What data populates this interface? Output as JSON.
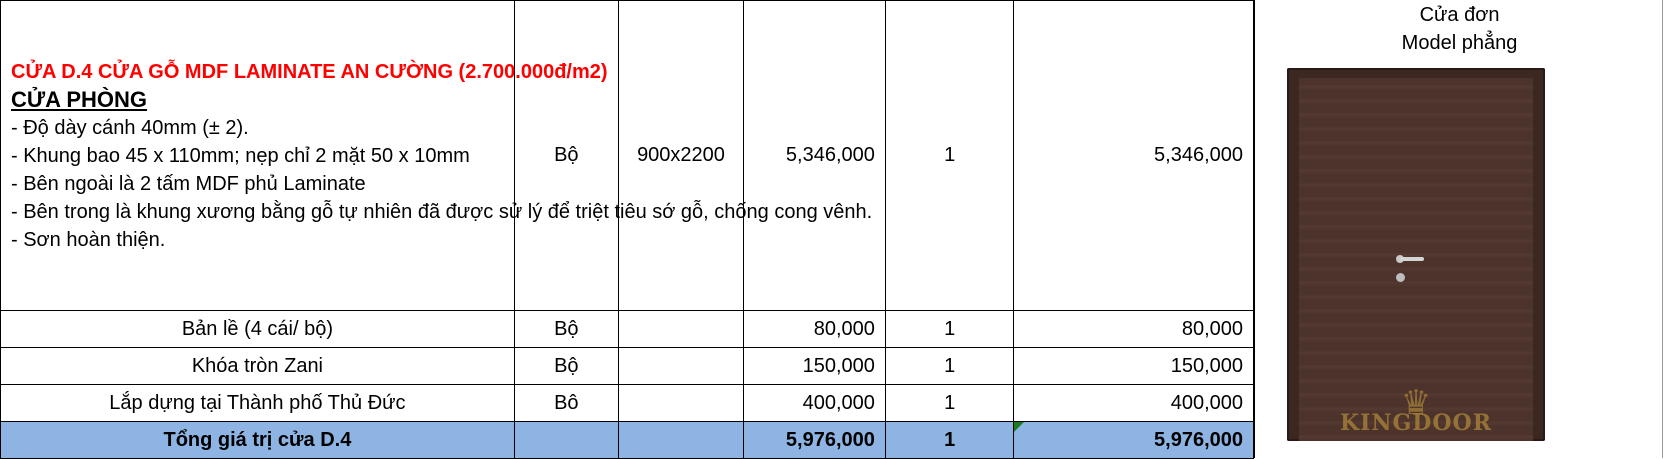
{
  "main_item": {
    "title": "CỬA D.4 CỬA GỖ MDF LAMINATE AN CƯỜNG (2.700.000đ/m2)",
    "subtitle": "CỬA PHÒNG",
    "lines": [
      "- Độ dày cánh 40mm (± 2).",
      "- Khung bao 45 x 110mm; nẹp chỉ 2 mặt 50 x 10mm",
      "- Bên ngoài là 2 tấm MDF phủ Laminate",
      "- Bên trong là khung xương bằng gỗ tự nhiên đã được sử lý để triệt tiêu sớ gỗ, chống cong vênh.",
      "- Sơn hoàn thiện."
    ],
    "unit": "Bộ",
    "size": "900x2200",
    "price": "5,346,000",
    "qty": "1",
    "total": "5,346,000"
  },
  "rows": [
    {
      "name": "Bản lề (4 cái/ bộ)",
      "unit": "Bộ",
      "size": "",
      "price": "80,000",
      "qty": "1",
      "total": "80,000"
    },
    {
      "name": "Khóa tròn Zani",
      "unit": "Bộ",
      "size": "",
      "price": "150,000",
      "qty": "1",
      "total": "150,000"
    },
    {
      "name": "Lắp dựng tại Thành phố Thủ Đức",
      "unit": "Bô",
      "size": "",
      "price": "400,000",
      "qty": "1",
      "total": "400,000"
    }
  ],
  "summary": {
    "label": "Tổng giá trị cửa D.4",
    "unit": "",
    "size": "",
    "price": "5,976,000",
    "qty": "1",
    "total": "5,976,000"
  },
  "image": {
    "caption_line1": "Cửa đơn",
    "caption_line2": "Model phẳng",
    "watermark": "KINGDOOR",
    "watermark_icon": "crown-icon",
    "door_color": "#4c342d"
  },
  "colors": {
    "title_red": "#ff0000",
    "summary_fill": "#8db4e2"
  }
}
